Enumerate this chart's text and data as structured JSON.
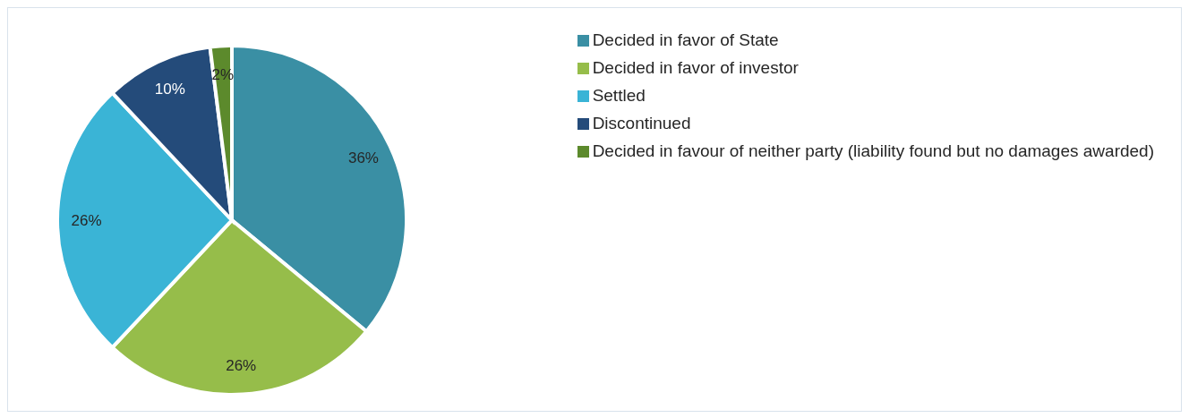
{
  "chart_data": {
    "type": "pie",
    "categories": [
      "Decided in favor of State",
      "Decided in favor of investor",
      "Settled",
      "Discontinued",
      "Decided in favour of neither party (liability found but no damages awarded)"
    ],
    "values": [
      36,
      26,
      26,
      10,
      2
    ],
    "value_labels": [
      "36%",
      "26%",
      "26%",
      "10%",
      "2%"
    ],
    "colors": [
      "#3a8fa4",
      "#96bd4a",
      "#3ab4d6",
      "#244b7a",
      "#5c8a2c"
    ],
    "legend": "top right"
  }
}
